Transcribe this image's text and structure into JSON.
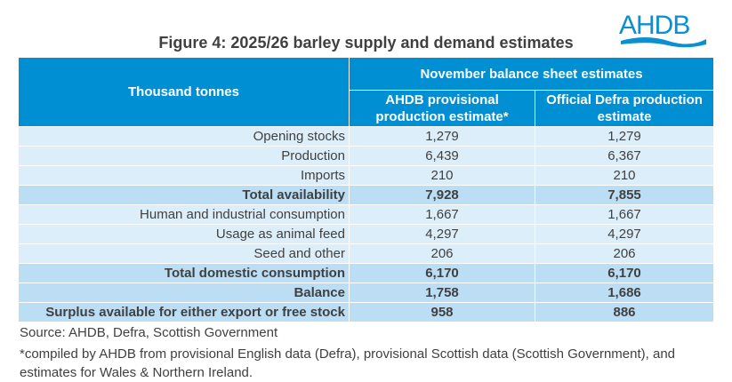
{
  "logo": "AHDB",
  "title": "Figure 4: 2025/26 barley supply and demand estimates",
  "table": {
    "corner": "Thousand tonnes",
    "group_header": "November balance sheet estimates",
    "columns": [
      "AHDB provisional production estimate*",
      "Official Defra production estimate"
    ],
    "rows": [
      {
        "label": "Opening stocks",
        "values": [
          "1,279",
          "1,279"
        ],
        "bold": false
      },
      {
        "label": "Production",
        "values": [
          "6,439",
          "6,367"
        ],
        "bold": false
      },
      {
        "label": "Imports",
        "values": [
          "210",
          "210"
        ],
        "bold": false
      },
      {
        "label": "Total availability",
        "values": [
          "7,928",
          "7,855"
        ],
        "bold": true
      },
      {
        "label": "Human and industrial consumption",
        "values": [
          "1,667",
          "1,667"
        ],
        "bold": false
      },
      {
        "label": "Usage as animal feed",
        "values": [
          "4,297",
          "4,297"
        ],
        "bold": false
      },
      {
        "label": "Seed and other",
        "values": [
          "206",
          "206"
        ],
        "bold": false
      },
      {
        "label": "Total domestic consumption",
        "values": [
          "6,170",
          "6,170"
        ],
        "bold": true
      },
      {
        "label": "Balance",
        "values": [
          "1,758",
          "1,686"
        ],
        "bold": true
      },
      {
        "label": "Surplus available for either export or free stock",
        "values": [
          "958",
          "886"
        ],
        "bold": true
      }
    ]
  },
  "source": "Source: AHDB, Defra, Scottish Government",
  "footnote": "*compiled by AHDB from provisional English data (Defra), provisional Scottish data (Scottish Government), and estimates for Wales & Northern Ireland.",
  "colors": {
    "header": "#008fd3",
    "row": "#ddeefb",
    "total_row": "#bcdef5",
    "text": "#404040"
  }
}
